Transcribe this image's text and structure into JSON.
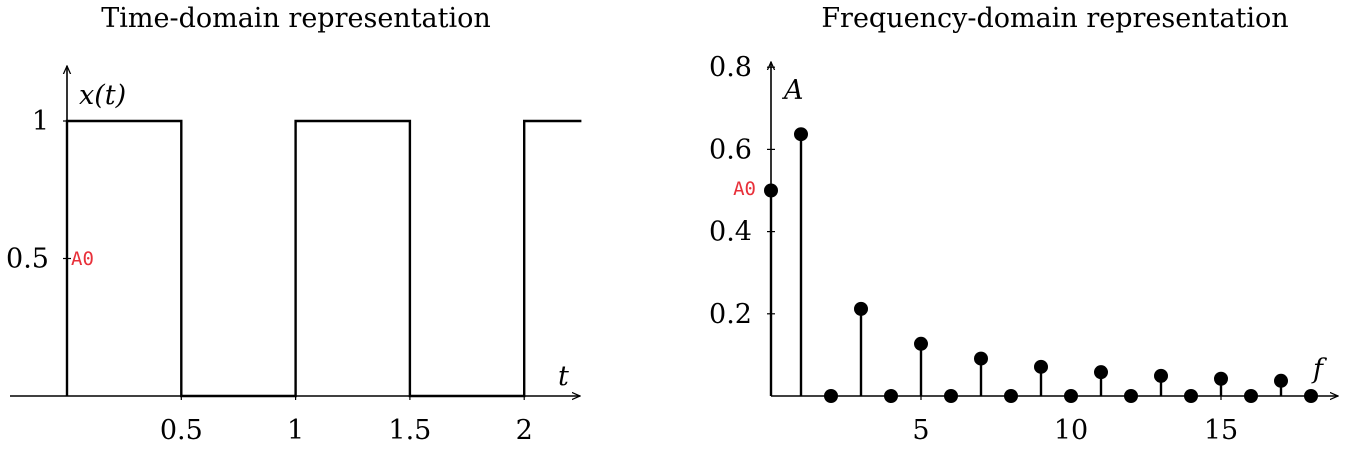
{
  "chart_data": [
    {
      "type": "line",
      "title": "Time-domain representation",
      "xlabel": "t",
      "ylabel": "x(t)",
      "xlim": [
        -0.25,
        2.25
      ],
      "ylim": [
        0,
        1.1
      ],
      "xticks": [
        0.5,
        1,
        1.5,
        2
      ],
      "xtick_labels": [
        "0.5",
        "1",
        "1.5",
        "2"
      ],
      "yticks": [
        0.5,
        1
      ],
      "ytick_labels": [
        "0.5",
        "1"
      ],
      "series": [
        {
          "x": [
            -0.25,
            0,
            0,
            0.5,
            0.5,
            1,
            1,
            1.5,
            1.5,
            2,
            2,
            2.25
          ],
          "y": [
            0,
            0,
            1,
            1,
            0,
            0,
            1,
            1,
            0,
            0,
            1,
            1
          ]
        }
      ],
      "annotations": [
        {
          "text": "A0",
          "x": 0,
          "y": 0.5,
          "color": "#e8303a"
        }
      ]
    },
    {
      "type": "scatter",
      "title": "Frequency-domain representation",
      "xlabel": "f",
      "ylabel": "A",
      "xlim": [
        0,
        18.8
      ],
      "ylim": [
        0,
        0.8
      ],
      "xticks": [
        5,
        10,
        15
      ],
      "xtick_labels": [
        "5",
        "10",
        "15"
      ],
      "yticks": [
        0.2,
        0.4,
        0.6,
        0.8
      ],
      "ytick_labels": [
        "0.2",
        "0.4",
        "0.6",
        "0.8"
      ],
      "series": [
        {
          "x": [
            0,
            1,
            2,
            3,
            4,
            5,
            6,
            7,
            8,
            9,
            10,
            11,
            12,
            13,
            14,
            15,
            16,
            17,
            18
          ],
          "y": [
            0.5,
            0.637,
            0,
            0.212,
            0,
            0.127,
            0,
            0.091,
            0,
            0.071,
            0,
            0.058,
            0,
            0.049,
            0,
            0.042,
            0,
            0.037,
            0
          ]
        }
      ],
      "annotations": [
        {
          "text": "A0",
          "x": 0,
          "y": 0.5,
          "color": "#e8303a"
        }
      ]
    }
  ]
}
